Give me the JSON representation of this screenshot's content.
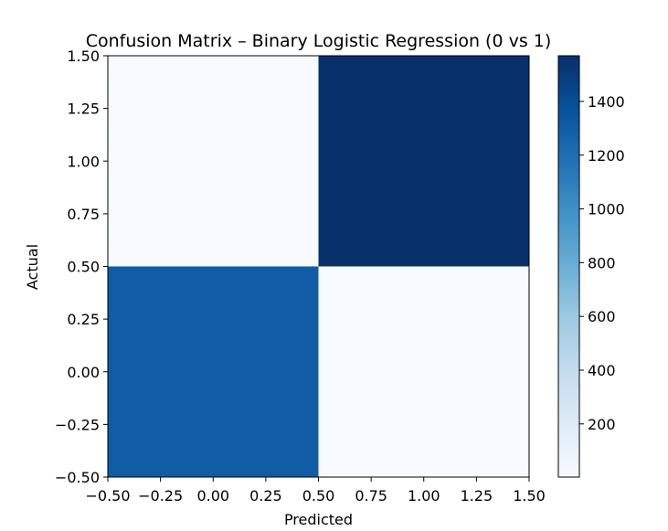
{
  "chart_data": {
    "type": "heatmap",
    "title": "Confusion Matrix – Binary Logistic Regression (0 vs 1)",
    "xlabel": "Predicted",
    "ylabel": "Actual",
    "xlim": [
      -0.5,
      1.5
    ],
    "ylim": [
      1.5,
      -0.5
    ],
    "x_ticks": [
      "−0.50",
      "−0.25",
      "0.00",
      "0.25",
      "0.50",
      "0.75",
      "1.00",
      "1.25",
      "1.50"
    ],
    "y_ticks": [
      "−0.50",
      "−0.25",
      "0.00",
      "0.25",
      "0.50",
      "0.75",
      "1.00",
      "1.25",
      "1.50"
    ],
    "rows": [
      0,
      1
    ],
    "cols": [
      0,
      1
    ],
    "values": [
      [
        1300,
        4
      ],
      [
        2,
        1570
      ]
    ],
    "colormap": "Blues",
    "colorbar": {
      "min": 2,
      "max": 1570,
      "ticks": [
        "200",
        "400",
        "600",
        "800",
        "1000",
        "1200",
        "1400"
      ]
    },
    "grid": false
  }
}
